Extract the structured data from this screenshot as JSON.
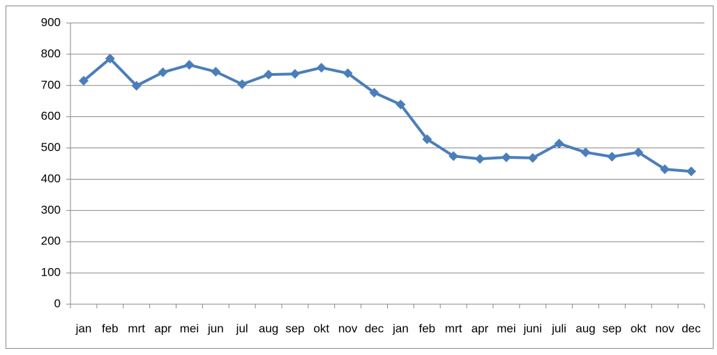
{
  "chart_data": {
    "type": "line",
    "categories": [
      "jan",
      "feb",
      "mrt",
      "apr",
      "mei",
      "jun",
      "jul",
      "aug",
      "sep",
      "okt",
      "nov",
      "dec",
      "jan",
      "feb",
      "mrt",
      "apr",
      "mei",
      "juni",
      "juli",
      "aug",
      "sep",
      "okt",
      "nov",
      "dec"
    ],
    "series": [
      {
        "color": "#4a7ebb",
        "values": [
          715,
          786,
          699,
          742,
          766,
          744,
          704,
          735,
          737,
          757,
          739,
          677,
          639,
          528,
          474,
          465,
          470,
          468,
          514,
          486,
          472,
          486,
          432,
          425
        ]
      }
    ],
    "ylim": [
      0,
      900
    ],
    "yticks": [
      0,
      100,
      200,
      300,
      400,
      500,
      600,
      700,
      800,
      900
    ],
    "grid": true
  }
}
